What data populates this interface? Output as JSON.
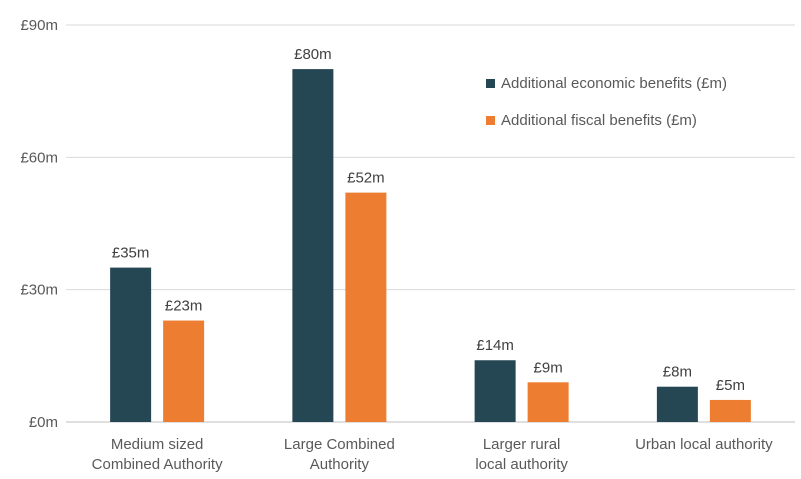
{
  "chart_data": {
    "type": "bar",
    "categories": [
      [
        "Medium sized",
        "Combined Authority"
      ],
      [
        "Large Combined",
        "Authority"
      ],
      [
        "Larger rural",
        "local authority"
      ],
      [
        "Urban local authority"
      ]
    ],
    "series": [
      {
        "name": "Additional economic benefits (£m)",
        "color": "#254653",
        "values": [
          35,
          80,
          14,
          8
        ],
        "labels": [
          "£35m",
          "£80m",
          "£14m",
          "£8m"
        ]
      },
      {
        "name": "Additional fiscal benefits (£m)",
        "color": "#ed7d31",
        "values": [
          23,
          52,
          9,
          5
        ],
        "labels": [
          "£23m",
          "£52m",
          "£9m",
          "£5m"
        ]
      }
    ],
    "yticks": [
      {
        "value": 0,
        "label": "£0m"
      },
      {
        "value": 30,
        "label": "£30m"
      },
      {
        "value": 60,
        "label": "£60m"
      },
      {
        "value": 90,
        "label": "£90m"
      }
    ],
    "ylim": [
      0,
      90
    ],
    "grid": true,
    "legend_position": "top-right"
  }
}
